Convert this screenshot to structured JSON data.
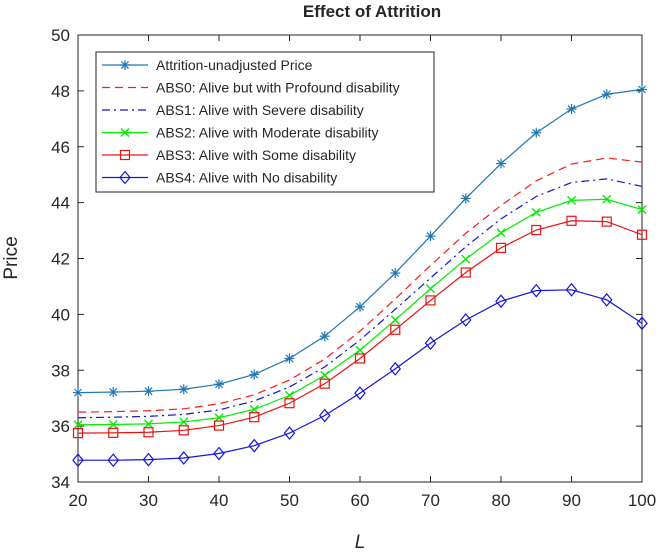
{
  "chart_data": {
    "type": "line",
    "title": "Effect of Attrition",
    "xlabel": "L",
    "ylabel": "Price",
    "xlim": [
      20,
      100
    ],
    "ylim": [
      34,
      50
    ],
    "xticks": [
      20,
      30,
      40,
      50,
      60,
      70,
      80,
      90,
      100
    ],
    "yticks": [
      34,
      36,
      38,
      40,
      42,
      44,
      46,
      48,
      50
    ],
    "grid": false,
    "legend_position": "top-left",
    "x": [
      20,
      25,
      30,
      35,
      40,
      45,
      50,
      55,
      60,
      65,
      70,
      75,
      80,
      85,
      90,
      95,
      100
    ],
    "series": [
      {
        "name": "Attrition-unadjusted Price",
        "color": "#1f77b4",
        "style": "solid",
        "marker": "asterisk",
        "values": [
          37.2,
          37.22,
          37.25,
          37.32,
          37.5,
          37.85,
          38.42,
          39.22,
          40.27,
          41.48,
          42.8,
          44.15,
          45.4,
          46.5,
          47.35,
          47.88,
          48.05
        ]
      },
      {
        "name": "ABS0: Alive but with Profound disability",
        "color": "#ff1a1a",
        "style": "dashed",
        "marker": "none",
        "values": [
          36.5,
          36.52,
          36.55,
          36.62,
          36.8,
          37.12,
          37.65,
          38.4,
          39.4,
          40.55,
          41.75,
          42.9,
          43.9,
          44.78,
          45.38,
          45.6,
          45.45
        ]
      },
      {
        "name": "ABS1: Alive with Severe disability",
        "color": "#1414cc",
        "style": "dashdot",
        "marker": "none",
        "values": [
          36.3,
          36.32,
          36.35,
          36.42,
          36.58,
          36.9,
          37.4,
          38.12,
          39.08,
          40.18,
          41.3,
          42.42,
          43.42,
          44.22,
          44.72,
          44.85,
          44.58
        ]
      },
      {
        "name": "ABS2: Alive with Moderate disability",
        "color": "#00ee00",
        "style": "solid",
        "marker": "cross",
        "values": [
          36.05,
          36.06,
          36.08,
          36.15,
          36.3,
          36.6,
          37.1,
          37.82,
          38.72,
          39.8,
          40.92,
          41.98,
          42.92,
          43.65,
          44.08,
          44.12,
          43.75
        ]
      },
      {
        "name": "ABS3: Alive with Some disability",
        "color": "#ee1111",
        "style": "solid",
        "marker": "square",
        "values": [
          35.75,
          35.76,
          35.78,
          35.85,
          36.02,
          36.32,
          36.82,
          37.52,
          38.42,
          39.45,
          40.5,
          41.5,
          42.38,
          43.02,
          43.35,
          43.32,
          42.85
        ]
      },
      {
        "name": "ABS4: Alive with No disability",
        "color": "#1414dd",
        "style": "solid",
        "marker": "diamond",
        "values": [
          34.78,
          34.78,
          34.8,
          34.86,
          35.02,
          35.3,
          35.75,
          36.38,
          37.18,
          38.05,
          38.97,
          39.8,
          40.47,
          40.85,
          40.88,
          40.52,
          39.68
        ]
      }
    ]
  }
}
